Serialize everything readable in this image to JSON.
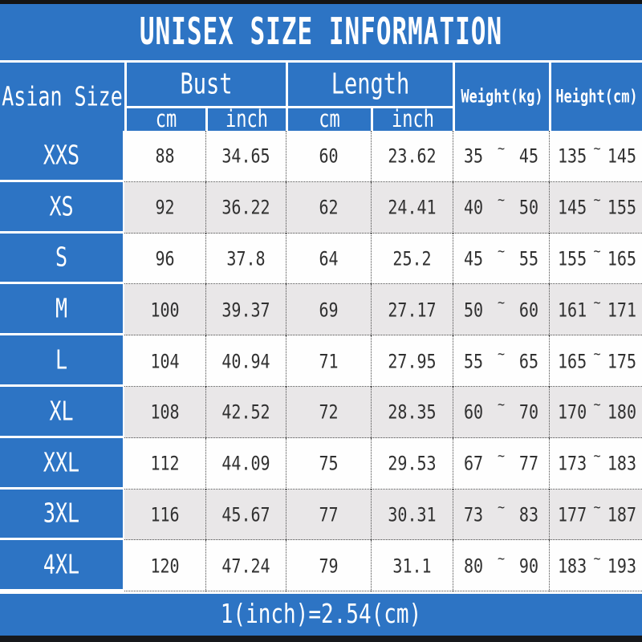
{
  "title": "UNISEX SIZE INFORMATION",
  "footer_note": "1(inch)=2.54(cm)",
  "chars": {
    "tilde": "~"
  },
  "colors": {
    "accent_blue": "#2d74c4",
    "row_alt_gray": "#e9e7e8",
    "row_white": "#fefefe",
    "frame_black": "#141414",
    "text_dark": "#303030",
    "text_white": "#ffffff"
  },
  "table": {
    "header": {
      "size_col": "Asian Size",
      "bust_group": "Bust",
      "length_group": "Length",
      "cm": "cm",
      "inch": "inch",
      "weight": "Weight(kg)",
      "height": "Height(cm)"
    },
    "rows": [
      {
        "size": "XXS",
        "bust_cm": "88",
        "bust_inch": "34.65",
        "length_cm": "60",
        "length_inch": "23.62",
        "weight_low": "35",
        "weight_high": "45",
        "height_low": "135",
        "height_high": "145"
      },
      {
        "size": "XS",
        "bust_cm": "92",
        "bust_inch": "36.22",
        "length_cm": "62",
        "length_inch": "24.41",
        "weight_low": "40",
        "weight_high": "50",
        "height_low": "145",
        "height_high": "155"
      },
      {
        "size": "S",
        "bust_cm": "96",
        "bust_inch": "37.8",
        "length_cm": "64",
        "length_inch": "25.2",
        "weight_low": "45",
        "weight_high": "55",
        "height_low": "155",
        "height_high": "165"
      },
      {
        "size": "M",
        "bust_cm": "100",
        "bust_inch": "39.37",
        "length_cm": "69",
        "length_inch": "27.17",
        "weight_low": "50",
        "weight_high": "60",
        "height_low": "161",
        "height_high": "171"
      },
      {
        "size": "L",
        "bust_cm": "104",
        "bust_inch": "40.94",
        "length_cm": "71",
        "length_inch": "27.95",
        "weight_low": "55",
        "weight_high": "65",
        "height_low": "165",
        "height_high": "175"
      },
      {
        "size": "XL",
        "bust_cm": "108",
        "bust_inch": "42.52",
        "length_cm": "72",
        "length_inch": "28.35",
        "weight_low": "60",
        "weight_high": "70",
        "height_low": "170",
        "height_high": "180"
      },
      {
        "size": "XXL",
        "bust_cm": "112",
        "bust_inch": "44.09",
        "length_cm": "75",
        "length_inch": "29.53",
        "weight_low": "67",
        "weight_high": "77",
        "height_low": "173",
        "height_high": "183"
      },
      {
        "size": "3XL",
        "bust_cm": "116",
        "bust_inch": "45.67",
        "length_cm": "77",
        "length_inch": "30.31",
        "weight_low": "73",
        "weight_high": "83",
        "height_low": "177",
        "height_high": "187"
      },
      {
        "size": "4XL",
        "bust_cm": "120",
        "bust_inch": "47.24",
        "length_cm": "79",
        "length_inch": "31.1",
        "weight_low": "80",
        "weight_high": "90",
        "height_low": "183",
        "height_high": "193"
      }
    ]
  }
}
